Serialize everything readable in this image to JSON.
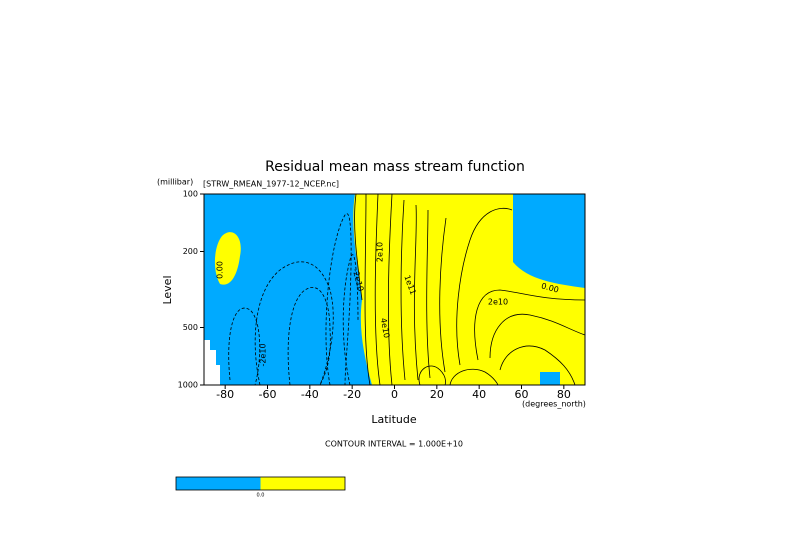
{
  "chart_data": {
    "type": "contour",
    "title": "Residual mean mass stream function",
    "subtitle": "[STRW_RMEAN_1977-12_NCEP.nc]",
    "y_unit": "(millibar)",
    "y_label": "Level",
    "x_label": "Latitude",
    "x_unit": "(degrees_north)",
    "footer": "CONTOUR INTERVAL = 1.000E+10",
    "xlim": [
      -90,
      90
    ],
    "xticks": [
      -80,
      -60,
      -40,
      -20,
      0,
      20,
      40,
      60,
      80
    ],
    "ylim": [
      1000,
      100
    ],
    "yticks": [
      100,
      200,
      500,
      1000
    ],
    "log_y": true,
    "annotations": [
      "0.00",
      "0.00",
      "2e10",
      "-2e10",
      "-2e10",
      "1e11",
      "4e10",
      "2e10"
    ],
    "colors": [
      "#00aaff",
      "#ffff00"
    ],
    "colorbar_label": "0.0"
  }
}
